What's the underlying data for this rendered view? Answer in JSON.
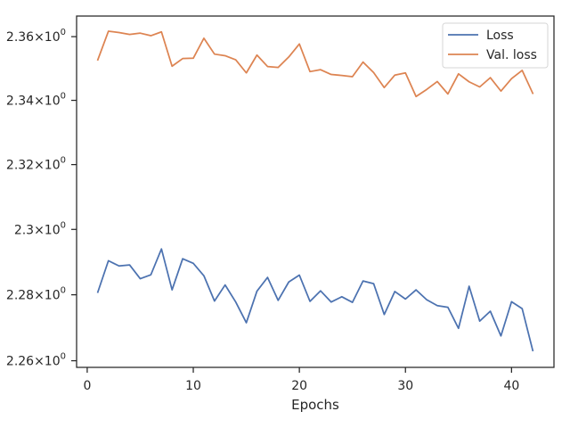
{
  "chart_data": {
    "type": "line",
    "title": "",
    "xlabel": "Epochs",
    "ylabel": "",
    "xlim": [
      -1,
      44
    ],
    "ylim": [
      2.258,
      2.3665
    ],
    "yscale": "log",
    "grid": false,
    "legend_position": "top-right",
    "xticks": [
      0,
      10,
      20,
      30,
      40
    ],
    "xtick_labels": [
      "0",
      "10",
      "20",
      "30",
      "40"
    ],
    "yticks": [
      2.26,
      2.28,
      2.3,
      2.32,
      2.34,
      2.36
    ],
    "ytick_labels": [
      {
        "base": "2.26",
        "sup": "0"
      },
      {
        "base": "2.28",
        "sup": "0"
      },
      {
        "base": "2.3",
        "sup": "0"
      },
      {
        "base": "2.32",
        "sup": "0"
      },
      {
        "base": "2.34",
        "sup": "0"
      },
      {
        "base": "2.36",
        "sup": "0"
      }
    ],
    "x": [
      1,
      2,
      3,
      4,
      5,
      6,
      7,
      8,
      9,
      10,
      11,
      12,
      13,
      14,
      15,
      16,
      17,
      18,
      19,
      20,
      21,
      22,
      23,
      24,
      25,
      26,
      27,
      28,
      29,
      30,
      31,
      32,
      33,
      34,
      35,
      36,
      37,
      38,
      39,
      40,
      41,
      42
    ],
    "series": [
      {
        "name": "Loss",
        "color": "#4c72b0",
        "values": [
          2.2808,
          2.2904,
          2.2888,
          2.2891,
          2.2849,
          2.2861,
          2.294,
          2.2815,
          2.291,
          2.2896,
          2.2858,
          2.2781,
          2.283,
          2.2778,
          2.2715,
          2.2811,
          2.2853,
          2.2783,
          2.2839,
          2.286,
          2.278,
          2.2812,
          2.2778,
          2.2794,
          2.2777,
          2.2842,
          2.2834,
          2.274,
          2.281,
          2.2787,
          2.2815,
          2.2785,
          2.2767,
          2.2762,
          2.2698,
          2.2826,
          2.272,
          2.275,
          2.2675,
          2.2779,
          2.2758,
          2.2631
        ]
      },
      {
        "name": "Val. loss",
        "color": "#dd8452",
        "values": [
          2.3527,
          2.3617,
          2.3613,
          2.3607,
          2.3611,
          2.3603,
          2.3615,
          2.3507,
          2.3531,
          2.3532,
          2.3595,
          2.3545,
          2.354,
          2.3527,
          2.3486,
          2.3542,
          2.3506,
          2.3503,
          2.3536,
          2.3577,
          2.349,
          2.3496,
          2.3481,
          2.3478,
          2.3474,
          2.352,
          2.3487,
          2.344,
          2.3479,
          2.3486,
          2.3412,
          2.3434,
          2.3459,
          2.342,
          2.3483,
          2.3458,
          2.3442,
          2.3471,
          2.3429,
          2.3468,
          2.3494,
          2.3422
        ]
      }
    ]
  }
}
